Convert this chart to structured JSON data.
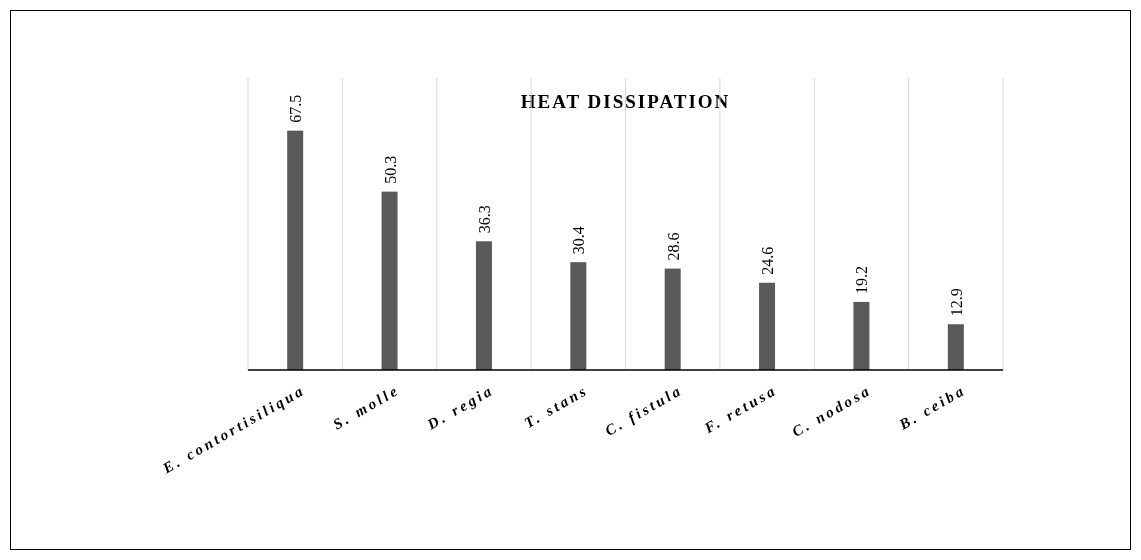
{
  "chart_data": {
    "type": "bar",
    "title": "HEAT DISSIPATION",
    "categories": [
      "E. contortisiliqua",
      "S. molle",
      "D. regia",
      "T. stans",
      "C. fistula",
      "F. retusa",
      "C. nodosa",
      "B. ceiba"
    ],
    "values": [
      67.5,
      50.3,
      36.3,
      30.4,
      28.6,
      24.6,
      19.2,
      12.9
    ],
    "color": "#595959",
    "data_labels": true,
    "grid": "x"
  }
}
